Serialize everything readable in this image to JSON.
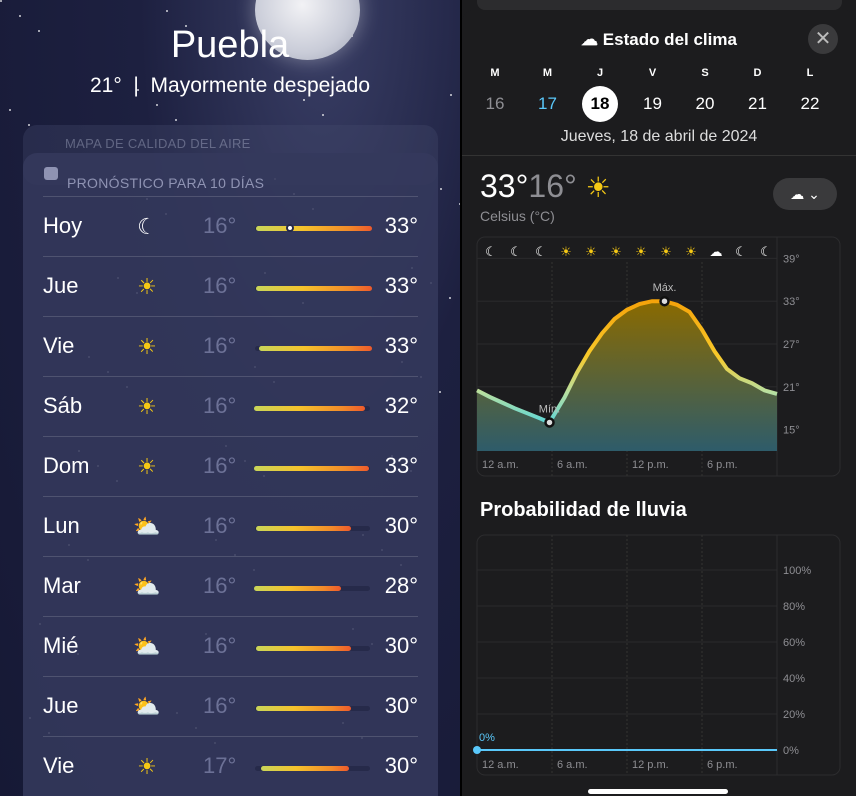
{
  "location": {
    "city": "Puebla",
    "current_temp": "21°",
    "separator": "|",
    "condition": "Mayormente despejado"
  },
  "air_quality": {
    "label": "MAPA DE CALIDAD DEL AIRE"
  },
  "forecast": {
    "title": "PRONÓSTICO PARA 10 DÍAS",
    "current_temp_value": 21,
    "days": [
      {
        "day": "Hoy",
        "icon": "moon-stars-icon",
        "low": "16°",
        "high": "33°",
        "lo": 16,
        "hi": 33,
        "current": true
      },
      {
        "day": "Jue",
        "icon": "sun-icon",
        "low": "16°",
        "high": "33°",
        "lo": 16,
        "hi": 33
      },
      {
        "day": "Vie",
        "icon": "sun-icon",
        "low": "16°",
        "high": "33°",
        "lo": 16.4,
        "hi": 33
      },
      {
        "day": "Sáb",
        "icon": "sun-icon",
        "low": "16°",
        "high": "32°",
        "lo": 15.7,
        "hi": 32
      },
      {
        "day": "Dom",
        "icon": "sun-icon",
        "low": "16°",
        "high": "33°",
        "lo": 15.7,
        "hi": 32.6
      },
      {
        "day": "Lun",
        "icon": "cloud-sun-icon",
        "low": "16°",
        "high": "30°",
        "lo": 16,
        "hi": 30
      },
      {
        "day": "Mar",
        "icon": "cloud-sun-icon",
        "low": "16°",
        "high": "28°",
        "lo": 15.7,
        "hi": 28.5
      },
      {
        "day": "Mié",
        "icon": "cloud-sun-icon",
        "low": "16°",
        "high": "30°",
        "lo": 16,
        "hi": 30
      },
      {
        "day": "Jue",
        "icon": "cloud-sun-icon",
        "low": "16°",
        "high": "30°",
        "lo": 16,
        "hi": 30
      },
      {
        "day": "Vie",
        "icon": "sun-icon",
        "low": "17°",
        "high": "30°",
        "lo": 16.7,
        "hi": 29.7
      }
    ]
  },
  "sheet": {
    "title": "Estado del clima",
    "title_icon": "cloud-icon",
    "close_icon": "close-icon",
    "weekdays": [
      "M",
      "M",
      "J",
      "V",
      "S",
      "D",
      "L"
    ],
    "dates": [
      "16",
      "17",
      "18",
      "19",
      "20",
      "21",
      "22"
    ],
    "today_index": 1,
    "selected_index": 2,
    "date_label": "Jueves, 18 de abril de 2024",
    "high": "33°",
    "low": "16°",
    "unit": "Celsius (°C)",
    "selector_icon": "cloud-sun-icon"
  },
  "colors": {
    "today": "#5ac8fa",
    "rain_line": "#5ac8fa"
  },
  "chart_data": [
    {
      "type": "area",
      "xlabel": "",
      "ylabel": "",
      "x_ticks": [
        "12 a.m.",
        "6 a.m.",
        "12 p.m.",
        "6 p.m."
      ],
      "y_ticks": [
        "39°",
        "33°",
        "27°",
        "21°",
        "15°"
      ],
      "ylim": [
        12,
        42
      ],
      "xlim": [
        0,
        24
      ],
      "hourly_icons": [
        "moon",
        "moon",
        "moon",
        "sun",
        "sun",
        "sun",
        "sun",
        "sun",
        "sun",
        "cloud-moon",
        "moon",
        "moon"
      ],
      "x": [
        0,
        1,
        2,
        3,
        4,
        5,
        5.8,
        7,
        8,
        9,
        10,
        11,
        12,
        13,
        14,
        15,
        16,
        17,
        18,
        19,
        20,
        21,
        22,
        23,
        24
      ],
      "y": [
        20.5,
        19.6,
        18.8,
        18,
        17.3,
        16.6,
        16,
        19.5,
        23,
        26,
        28.5,
        30.5,
        31.8,
        32.6,
        33,
        33,
        32.5,
        31.5,
        29,
        26,
        23.5,
        22.2,
        21.5,
        20.5,
        20
      ],
      "annotations": [
        {
          "label": "Mín.",
          "x": 5.8,
          "y": 16
        },
        {
          "label": "Máx.",
          "x": 15,
          "y": 33
        }
      ]
    },
    {
      "type": "line",
      "title": "Probabilidad de lluvia",
      "x_ticks": [
        "12 a.m.",
        "6 a.m.",
        "12 p.m.",
        "6 p.m."
      ],
      "y_ticks": [
        "100%",
        "80%",
        "60%",
        "40%",
        "20%",
        "0%"
      ],
      "ylim": [
        0,
        100
      ],
      "xlim": [
        0,
        24
      ],
      "x": [
        0,
        24
      ],
      "y": [
        0,
        0
      ],
      "annotations": [
        {
          "label": "0%",
          "x": 0,
          "y": 0
        }
      ]
    }
  ]
}
